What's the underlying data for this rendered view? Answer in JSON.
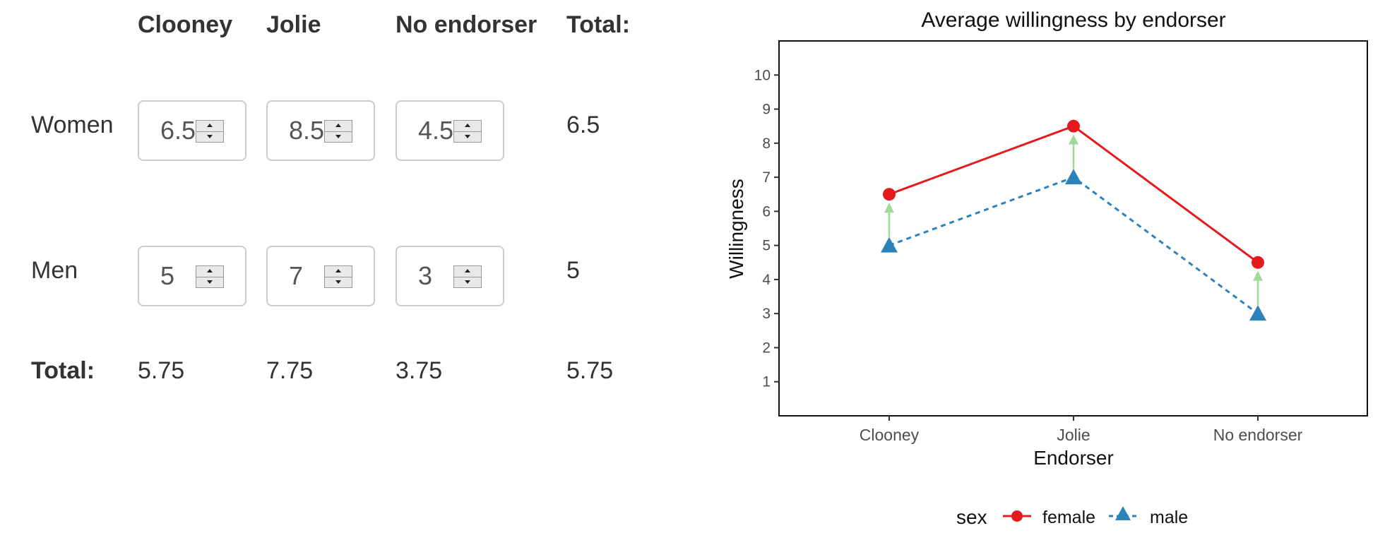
{
  "table": {
    "columns": [
      "Clooney",
      "Jolie",
      "No endorser",
      "Total:"
    ],
    "rows": [
      {
        "label": "Women",
        "inputs": [
          "6.5",
          "8.5",
          "4.5"
        ],
        "total": "6.5"
      },
      {
        "label": "Men",
        "inputs": [
          "5",
          "7",
          "3"
        ],
        "total": "5"
      }
    ],
    "totals_label": "Total:",
    "column_totals": [
      "5.75",
      "7.75",
      "3.75",
      "5.75"
    ]
  },
  "chart_data": {
    "type": "line",
    "title": "Average willingness by endorser",
    "xlabel": "Endorser",
    "ylabel": "Willingness",
    "categories": [
      "Clooney",
      "Jolie",
      "No endorser"
    ],
    "y_ticks": [
      1,
      2,
      3,
      4,
      5,
      6,
      7,
      8,
      9,
      10
    ],
    "ylim": [
      0,
      11
    ],
    "series": [
      {
        "name": "female",
        "values": [
          6.5,
          8.5,
          4.5
        ],
        "color": "#e41a1c",
        "marker": "circle",
        "line": "solid"
      },
      {
        "name": "male",
        "values": [
          5,
          7,
          3
        ],
        "color": "#2b83ba",
        "marker": "triangle",
        "line": "dashed"
      }
    ],
    "arrow_color": "#a1d99b",
    "legend": {
      "title": "sex",
      "position": "bottom"
    },
    "grid": false
  }
}
